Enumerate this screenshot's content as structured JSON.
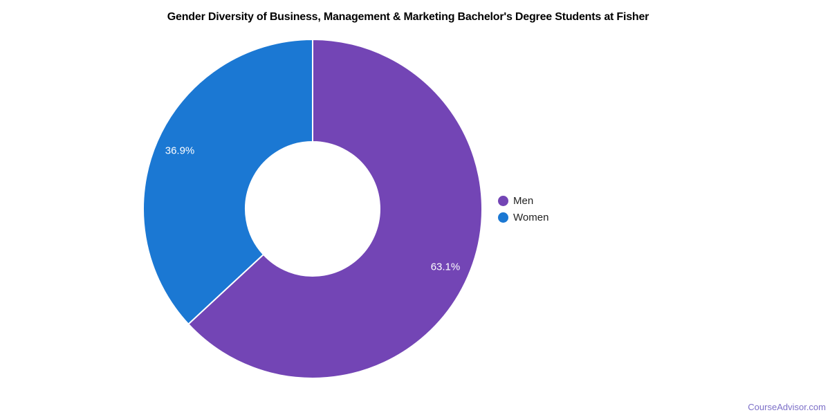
{
  "page": {
    "watermark": "CourseAdvisor.com"
  },
  "chart_data": {
    "type": "pie",
    "subtype": "donut",
    "title": "Gender Diversity of Business, Management & Marketing Bachelor's Degree Students at Fisher",
    "categories": [
      "Men",
      "Women"
    ],
    "values": [
      63.1,
      36.9
    ],
    "value_labels": [
      "63.1%",
      "36.9%"
    ],
    "unit": "%",
    "colors": [
      "#7345b5",
      "#1b78d3"
    ],
    "label_color": "#ffffff",
    "slice_divider_color": "#ffffff",
    "legend_position": "right",
    "start_angle_deg": 0,
    "direction": "clockwise",
    "background_color": "#ffffff"
  }
}
